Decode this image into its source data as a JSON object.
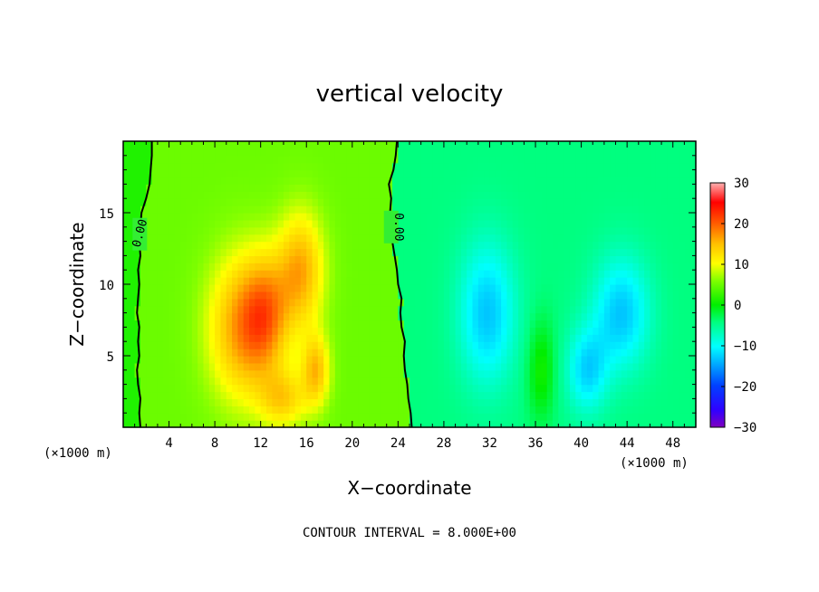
{
  "chart_data": {
    "type": "heatmap",
    "title": "vertical velocity",
    "xlabel": "X−coordinate",
    "ylabel": "Z−coordinate",
    "x_unit": "(×1000 m)",
    "y_unit": "(×1000 m)",
    "xlim": [
      0,
      50
    ],
    "ylim": [
      0,
      20
    ],
    "x_ticks": [
      4,
      8,
      12,
      16,
      20,
      24,
      28,
      32,
      36,
      40,
      44,
      48
    ],
    "y_ticks": [
      5,
      10,
      15
    ],
    "colorbar": {
      "min": -30,
      "max": 30,
      "ticks": [
        30,
        20,
        10,
        0,
        -10,
        -20,
        -30
      ],
      "tick_labels": [
        "30",
        "20",
        "10",
        "0",
        "−10",
        "−20",
        "−30"
      ]
    },
    "contour_interval_text": "CONTOUR INTERVAL = 8.000E+00",
    "contour_labels": [
      "0.00",
      "0.00"
    ],
    "zero_contour_x_left": [
      [
        0.0,
        1.5
      ],
      [
        1.0,
        1.4
      ],
      [
        2.0,
        1.5
      ],
      [
        3.0,
        1.3
      ],
      [
        4.0,
        1.2
      ],
      [
        5.0,
        1.4
      ],
      [
        6.0,
        1.3
      ],
      [
        7.0,
        1.4
      ],
      [
        8.0,
        1.2
      ],
      [
        9.0,
        1.3
      ],
      [
        10.0,
        1.4
      ],
      [
        11.0,
        1.3
      ],
      [
        12.0,
        1.5
      ],
      [
        13.0,
        1.4
      ],
      [
        14.0,
        1.5
      ],
      [
        15.0,
        1.6
      ],
      [
        16.0,
        2.0
      ],
      [
        17.0,
        2.3
      ],
      [
        18.0,
        2.4
      ],
      [
        19.0,
        2.5
      ],
      [
        20.0,
        2.5
      ]
    ],
    "zero_contour_x_mid": [
      [
        0.0,
        25.2
      ],
      [
        1.0,
        25.1
      ],
      [
        2.0,
        24.9
      ],
      [
        3.0,
        24.8
      ],
      [
        4.0,
        24.6
      ],
      [
        5.0,
        24.5
      ],
      [
        6.0,
        24.6
      ],
      [
        7.0,
        24.3
      ],
      [
        8.0,
        24.2
      ],
      [
        9.0,
        24.3
      ],
      [
        10.0,
        24.0
      ],
      [
        11.0,
        23.9
      ],
      [
        12.0,
        23.7
      ],
      [
        13.0,
        23.5
      ],
      [
        14.0,
        23.4
      ],
      [
        15.0,
        23.3
      ],
      [
        16.0,
        23.4
      ],
      [
        17.0,
        23.2
      ],
      [
        18.0,
        23.6
      ],
      [
        19.0,
        23.8
      ],
      [
        20.0,
        23.9
      ]
    ],
    "field_features": [
      {
        "x": 10.5,
        "z": 7.0,
        "value": 12,
        "sx": 3.0,
        "sz": 5.0
      },
      {
        "x": 15.5,
        "z": 11.0,
        "value": 11,
        "sx": 2.0,
        "sz": 4.0
      },
      {
        "x": 16.8,
        "z": 4.0,
        "value": 10,
        "sx": 1.2,
        "sz": 2.5
      },
      {
        "x": 12.5,
        "z": 8.0,
        "value": 9,
        "sx": 2.0,
        "sz": 4.0
      },
      {
        "x": 14.0,
        "z": 2.0,
        "value": 8,
        "sx": 2.0,
        "sz": 2.0
      },
      {
        "x": 31.8,
        "z": 8.0,
        "value": -9,
        "sx": 2.5,
        "sz": 5.0
      },
      {
        "x": 43.5,
        "z": 8.0,
        "value": -9,
        "sx": 2.5,
        "sz": 4.0
      },
      {
        "x": 40.5,
        "z": 4.0,
        "value": -8,
        "sx": 1.8,
        "sz": 3.0
      },
      {
        "x": 36.5,
        "z": 4.0,
        "value": 5,
        "sx": 1.2,
        "sz": 3.5
      }
    ],
    "base_value_left": 5,
    "base_value_right": -4
  }
}
